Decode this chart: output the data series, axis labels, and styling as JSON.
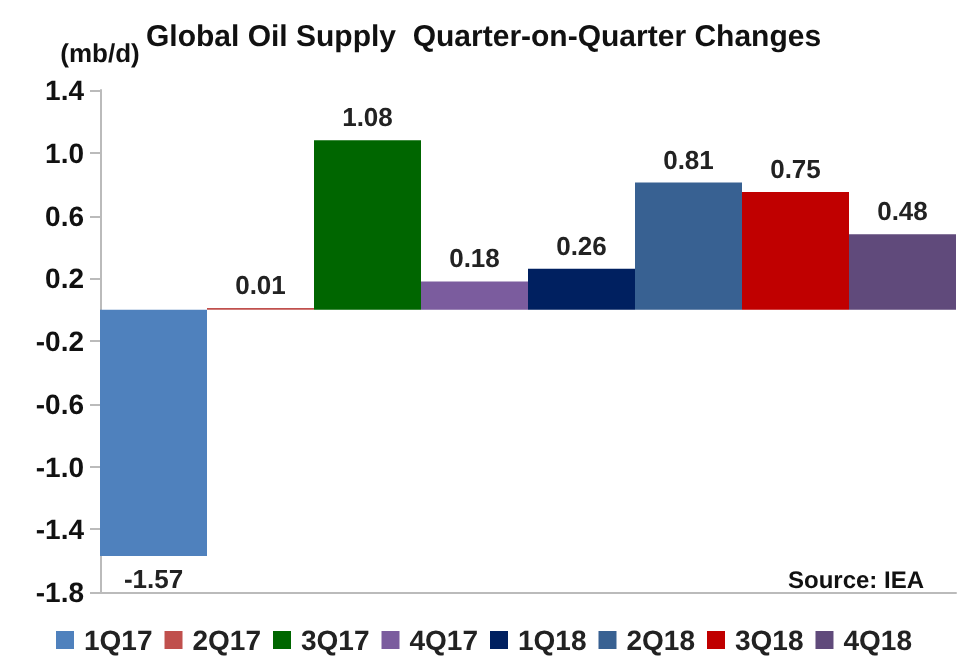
{
  "chart_data": {
    "type": "bar",
    "title": "Global Oil Supply  Quarter-on-Quarter Changes",
    "ylabel": "(mb/d)",
    "annotations": [
      "Source: IEA"
    ],
    "categories": [
      null
    ],
    "series": [
      {
        "name": "1Q17",
        "color": "#4f81bd",
        "values": [
          -1.57
        ]
      },
      {
        "name": "2Q17",
        "color": "#c0504d",
        "values": [
          0.01
        ]
      },
      {
        "name": "3Q17",
        "color": "#006600",
        "values": [
          1.08
        ]
      },
      {
        "name": "4Q17",
        "color": "#7b5c9e",
        "values": [
          0.18
        ]
      },
      {
        "name": "1Q18",
        "color": "#002060",
        "values": [
          0.26
        ]
      },
      {
        "name": "2Q18",
        "color": "#386192",
        "values": [
          0.81
        ]
      },
      {
        "name": "3Q18",
        "color": "#c00000",
        "values": [
          0.75
        ]
      },
      {
        "name": "4Q18",
        "color": "#604a7b",
        "values": [
          0.48
        ]
      }
    ],
    "ylim": [
      -1.8,
      1.4
    ],
    "yticks": [
      -1.8,
      -1.4,
      {
        "value": -1,
        "label": "-1.0"
      },
      -0.6,
      -0.2,
      0.2,
      0.6,
      {
        "value": 1,
        "label": "1.0"
      },
      1.4
    ],
    "data_labels": true,
    "grid": false,
    "legend": "bottom"
  }
}
